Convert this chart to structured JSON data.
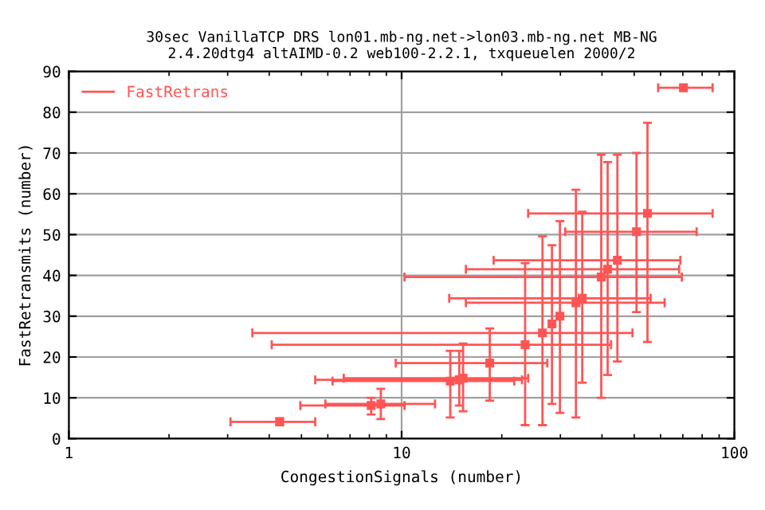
{
  "chart_data": {
    "type": "scatter",
    "title": "30sec VanillaTCP DRS lon01.mb-ng.net->lon03.mb-ng.net MB-NG\n2.4.20dtg4 altAIMD-0.2 web100-2.2.1, txqueuelen 2000/2",
    "xlabel": "CongestionSignals (number)",
    "ylabel": "FastRetransmits (number)",
    "log": "x",
    "xlim": [
      1,
      100
    ],
    "xticks": [
      1,
      10,
      100
    ],
    "ylim": [
      0,
      90
    ],
    "yticks": [
      0,
      10,
      20,
      30,
      40,
      50,
      60,
      70,
      80,
      90
    ],
    "grid": true,
    "legend": "top left",
    "marker": "square",
    "series": [
      {
        "name": "FastRetrans",
        "color": "#ff5555",
        "x": [
          4.3,
          8.1,
          8.66,
          14.0,
          14.9,
          15.3,
          18.4,
          23.5,
          26.5,
          28.3,
          29.9,
          33.4,
          34.9,
          39.8,
          41.6,
          44.5,
          50.8,
          54.8,
          70.3
        ],
        "values": [
          4.1,
          8.1,
          8.5,
          14.1,
          14.4,
          14.8,
          18.5,
          23,
          25.9,
          28.1,
          30,
          33.3,
          34.4,
          39.6,
          41.5,
          43.7,
          50.7,
          55.2,
          86
        ],
        "xerrors": [
          [
            3.06,
            5.5
          ],
          [
            4.96,
            10.2
          ],
          [
            5.9,
            12.6
          ],
          [
            6.2,
            21.8
          ],
          [
            5.5,
            23
          ],
          [
            6.7,
            24
          ],
          [
            9.6,
            27.4
          ],
          [
            4.07,
            42.6
          ],
          [
            3.56,
            49.4
          ],
          null,
          null,
          [
            15.6,
            61.7
          ],
          [
            13.9,
            56
          ],
          [
            10.2,
            69.5
          ],
          [
            15.6,
            68.2
          ],
          [
            18.9,
            68.8
          ],
          [
            31,
            77
          ],
          [
            24,
            86
          ],
          [
            59,
            86
          ]
        ],
        "errors": [
          [
            3.3,
            5
          ],
          [
            5.9,
            10
          ],
          [
            4.8,
            12.2
          ],
          [
            5.2,
            21.5
          ],
          [
            8.1,
            21.5
          ],
          [
            6.7,
            23.3
          ],
          [
            9.3,
            27
          ],
          [
            3.3,
            43
          ],
          [
            3.3,
            49.6
          ],
          [
            8.5,
            47.4
          ],
          [
            6.3,
            53.3
          ],
          [
            5.2,
            61
          ],
          [
            13.7,
            55.6
          ],
          [
            10,
            69.6
          ],
          [
            15.6,
            67.8
          ],
          [
            18.9,
            69.6
          ],
          [
            31,
            70
          ],
          [
            23.7,
            77.4
          ],
          null
        ]
      }
    ]
  }
}
